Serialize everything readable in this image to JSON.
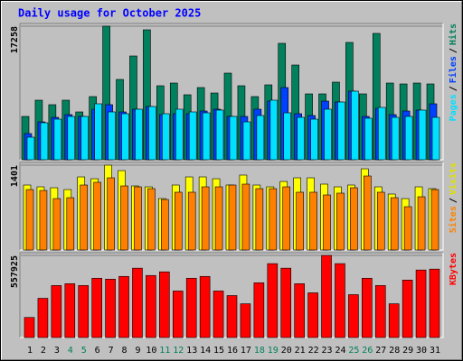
{
  "chart_data": [
    {
      "type": "bar",
      "title": "Daily usage for October 2025",
      "legend_separator": "/",
      "ylim": [
        0,
        17258
      ],
      "yticks": [
        17258
      ],
      "series": [
        {
          "name": "Hits",
          "color": "#00805c",
          "values": [
            5597,
            7696,
            7113,
            7696,
            6180,
            8162,
            17258,
            10377,
            13409,
            16790,
            9561,
            9911,
            8395,
            9328,
            8628,
            11194,
            9561,
            8162,
            9678,
            15042,
            12243,
            8512,
            8512,
            10028,
            15158,
            8512,
            16325,
            9911,
            9795,
            9911,
            9795
          ]
        },
        {
          "name": "Files",
          "color": "#0040ff",
          "values": [
            3381,
            4897,
            5480,
            5830,
            5597,
            6530,
            7113,
            6180,
            6530,
            6879,
            5830,
            5947,
            5947,
            6296,
            6530,
            5597,
            5597,
            6530,
            7579,
            9328,
            5947,
            5713,
            7579,
            7462,
            8862,
            5597,
            6646,
            5830,
            6296,
            6413,
            7229
          ]
        },
        {
          "name": "Pages",
          "color": "#00e0ff",
          "values": [
            2915,
            4781,
            5247,
            5597,
            5597,
            7229,
            6180,
            5947,
            6530,
            6879,
            5947,
            6530,
            6180,
            6063,
            6413,
            5597,
            4897,
            5713,
            7696,
            6063,
            5480,
            5247,
            6530,
            7462,
            8862,
            5364,
            6763,
            5480,
            5597,
            6413,
            5480
          ]
        }
      ]
    },
    {
      "type": "bar",
      "legend_separator": "/",
      "ylim": [
        0,
        1401
      ],
      "yticks": [
        1401
      ],
      "series": [
        {
          "name": "Visits",
          "color": "#ffff00",
          "values": [
            1073,
            1043,
            1028,
            998,
            1207,
            1177,
            1401,
            1311,
            1058,
            1043,
            849,
            1073,
            1207,
            1207,
            1177,
            1073,
            1237,
            1073,
            1043,
            1132,
            1192,
            1192,
            1088,
            1043,
            1073,
            1341,
            1043,
            924,
            849,
            1043,
            1013
          ]
        },
        {
          "name": "Sites",
          "color": "#ff8000",
          "values": [
            998,
            983,
            849,
            864,
            1073,
            1118,
            1192,
            1058,
            1043,
            1013,
            834,
            954,
            954,
            1043,
            1043,
            1073,
            1088,
            1013,
            1013,
            1043,
            954,
            954,
            909,
            939,
            1028,
            1222,
            954,
            864,
            715,
            879,
            998
          ]
        }
      ]
    },
    {
      "type": "bar",
      "ylim": [
        0,
        557925
      ],
      "yticks": [
        557925
      ],
      "categories": [
        "1",
        "2",
        "3",
        "4",
        "5",
        "6",
        "7",
        "8",
        "9",
        "10",
        "11",
        "12",
        "13",
        "14",
        "15",
        "16",
        "17",
        "18",
        "19",
        "20",
        "21",
        "22",
        "23",
        "24",
        "25",
        "26",
        "27",
        "28",
        "29",
        "30",
        "31"
      ],
      "category_colors": [
        "#000000",
        "#000000",
        "#000000",
        "#00805c",
        "#00805c",
        "#000000",
        "#000000",
        "#000000",
        "#000000",
        "#000000",
        "#00805c",
        "#00805c",
        "#000000",
        "#000000",
        "#000000",
        "#000000",
        "#000000",
        "#00805c",
        "#00805c",
        "#000000",
        "#000000",
        "#000000",
        "#000000",
        "#000000",
        "#00805c",
        "#00805c",
        "#000000",
        "#000000",
        "#000000",
        "#000000",
        "#000000"
      ],
      "series": [
        {
          "name": "KBytes",
          "color": "#ff0000",
          "values": [
            136378,
            266557,
            353343,
            365741,
            353343,
            402935,
            396736,
            415333,
            471124,
            421532,
            446328,
            316149,
            402935,
            415333,
            316149,
            285154,
            229363,
            371940,
            502119,
            471124,
            365741,
            303751,
            557925,
            502119,
            291353,
            402935,
            353343,
            229363,
            390537,
            458726,
            464925
          ]
        }
      ]
    }
  ]
}
